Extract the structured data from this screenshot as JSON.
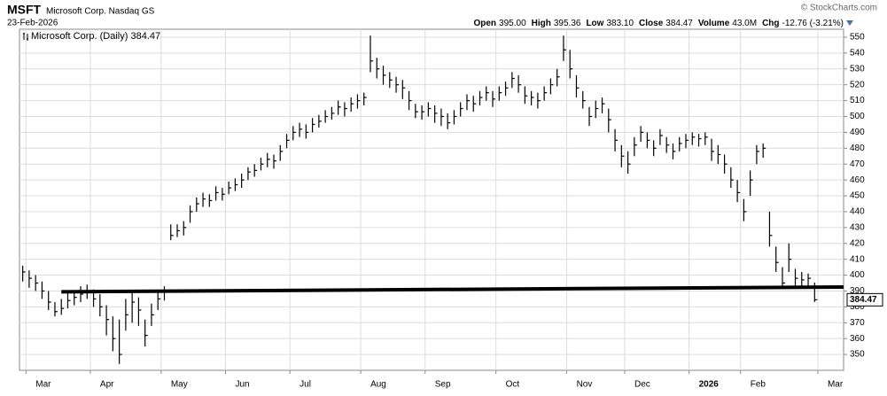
{
  "header": {
    "symbol": "MSFT",
    "name": "Microsoft Corp. Nasdaq GS",
    "date": "23-Feb-2026",
    "copyright": "© StockCharts.com",
    "stats": [
      {
        "label": "Open",
        "value": "395.00"
      },
      {
        "label": "High",
        "value": "395.36"
      },
      {
        "label": "Low",
        "value": "383.10"
      },
      {
        "label": "Close",
        "value": "384.47"
      },
      {
        "label": "Volume",
        "value": "43.0M"
      },
      {
        "label": "Chg",
        "value": "-12.76 (-3.21%)"
      }
    ]
  },
  "chart_data": {
    "type": "ohlc",
    "legend": "Microsoft Corp. (Daily) 384.47",
    "color": "#000000",
    "grid": true,
    "categories": [
      null,
      "Mar",
      null,
      null,
      null,
      null,
      null,
      null,
      null,
      null,
      null,
      "Apr",
      null,
      null,
      null,
      null,
      null,
      null,
      null,
      null,
      null,
      null,
      "May",
      null,
      null,
      null,
      null,
      null,
      null,
      null,
      null,
      null,
      "Jun",
      null,
      null,
      null,
      null,
      null,
      null,
      null,
      null,
      null,
      "Jul",
      null,
      null,
      null,
      null,
      null,
      null,
      null,
      null,
      null,
      null,
      "Aug",
      null,
      null,
      null,
      null,
      null,
      null,
      null,
      null,
      null,
      "Sep",
      null,
      null,
      null,
      null,
      null,
      null,
      null,
      null,
      null,
      null,
      "Oct",
      null,
      null,
      null,
      null,
      null,
      null,
      null,
      null,
      null,
      null,
      "Nov",
      null,
      null,
      null,
      null,
      null,
      null,
      null,
      null,
      "Dec",
      null,
      null,
      null,
      null,
      null,
      null,
      null,
      null,
      null,
      "2026",
      null,
      null,
      null,
      null,
      null,
      null,
      null,
      "Feb",
      null,
      null,
      null,
      null,
      null,
      null,
      null,
      null,
      null,
      null,
      null,
      "Mar",
      null,
      null,
      null
    ],
    "high": [
      406,
      403,
      400,
      396,
      390,
      383,
      385,
      389,
      390,
      393,
      394,
      391,
      388,
      381,
      374,
      372,
      385,
      390,
      386,
      372,
      382,
      390,
      393,
      432,
      432,
      434,
      444,
      449,
      452,
      451,
      456,
      455,
      459,
      461,
      464,
      468,
      470,
      474,
      477,
      476,
      482,
      489,
      494,
      496,
      495,
      499,
      501,
      504,
      506,
      510,
      509,
      512,
      514,
      515,
      551,
      537,
      532,
      528,
      525,
      523,
      516,
      508,
      507,
      509,
      507,
      505,
      502,
      504,
      509,
      514,
      513,
      516,
      519,
      516,
      519,
      522,
      528,
      526,
      519,
      516,
      515,
      519,
      524,
      530,
      551,
      542,
      526,
      516,
      506,
      510,
      512,
      505,
      492,
      482,
      478,
      487,
      494,
      490,
      485,
      492,
      487,
      483,
      487,
      489,
      490,
      489,
      490,
      486,
      482,
      476,
      468,
      460,
      448,
      466,
      482,
      483,
      440,
      418,
      405,
      420,
      404,
      402,
      401,
      395.36,
      null,
      null,
      null,
      null
    ],
    "low": [
      396,
      392,
      390,
      385,
      378,
      374,
      375,
      379,
      381,
      383,
      385,
      380,
      374,
      362,
      352,
      344,
      365,
      370,
      368,
      355,
      368,
      378,
      384,
      422,
      424,
      425,
      433,
      440,
      443,
      443,
      447,
      447,
      451,
      453,
      455,
      460,
      462,
      466,
      468,
      467,
      472,
      480,
      485,
      487,
      486,
      490,
      493,
      496,
      498,
      501,
      500,
      503,
      505,
      507,
      528,
      524,
      520,
      518,
      515,
      511,
      504,
      499,
      498,
      500,
      496,
      494,
      492,
      495,
      500,
      504,
      503,
      507,
      510,
      506,
      510,
      513,
      518,
      515,
      508,
      507,
      505,
      510,
      514,
      519,
      535,
      524,
      512,
      505,
      494,
      499,
      502,
      490,
      478,
      468,
      464,
      475,
      484,
      480,
      475,
      482,
      477,
      473,
      478,
      480,
      482,
      481,
      482,
      472,
      470,
      464,
      455,
      446,
      434,
      450,
      470,
      474,
      418,
      402,
      392,
      402,
      393,
      393,
      392,
      383.1,
      null,
      null,
      null,
      null
    ],
    "close": [
      402,
      398,
      395,
      390,
      383,
      377,
      379,
      384,
      386,
      388,
      390,
      385,
      380,
      372,
      360,
      350,
      375,
      383,
      378,
      362,
      375,
      385,
      390,
      425,
      428,
      430,
      440,
      445,
      448,
      447,
      452,
      451,
      455,
      457,
      460,
      465,
      466,
      470,
      473,
      472,
      478,
      485,
      490,
      492,
      490,
      495,
      497,
      500,
      502,
      506,
      505,
      508,
      510,
      512,
      535,
      530,
      526,
      523,
      520,
      518,
      510,
      503,
      503,
      505,
      502,
      500,
      496,
      500,
      505,
      510,
      508,
      512,
      515,
      511,
      515,
      518,
      524,
      520,
      513,
      512,
      510,
      515,
      520,
      525,
      542,
      530,
      518,
      510,
      500,
      505,
      508,
      498,
      485,
      475,
      470,
      482,
      490,
      485,
      480,
      488,
      482,
      478,
      483,
      485,
      487,
      486,
      487,
      478,
      476,
      470,
      460,
      452,
      440,
      460,
      478,
      480,
      425,
      408,
      395,
      410,
      398,
      397,
      398,
      384.47,
      null,
      null,
      null,
      null
    ],
    "trendline": [
      389.5,
      392.5
    ],
    "ylim": [
      340,
      555
    ],
    "yticks": [
      350,
      360,
      370,
      380,
      390,
      400,
      410,
      420,
      430,
      440,
      450,
      460,
      470,
      480,
      490,
      500,
      510,
      520,
      530,
      540,
      550
    ]
  }
}
